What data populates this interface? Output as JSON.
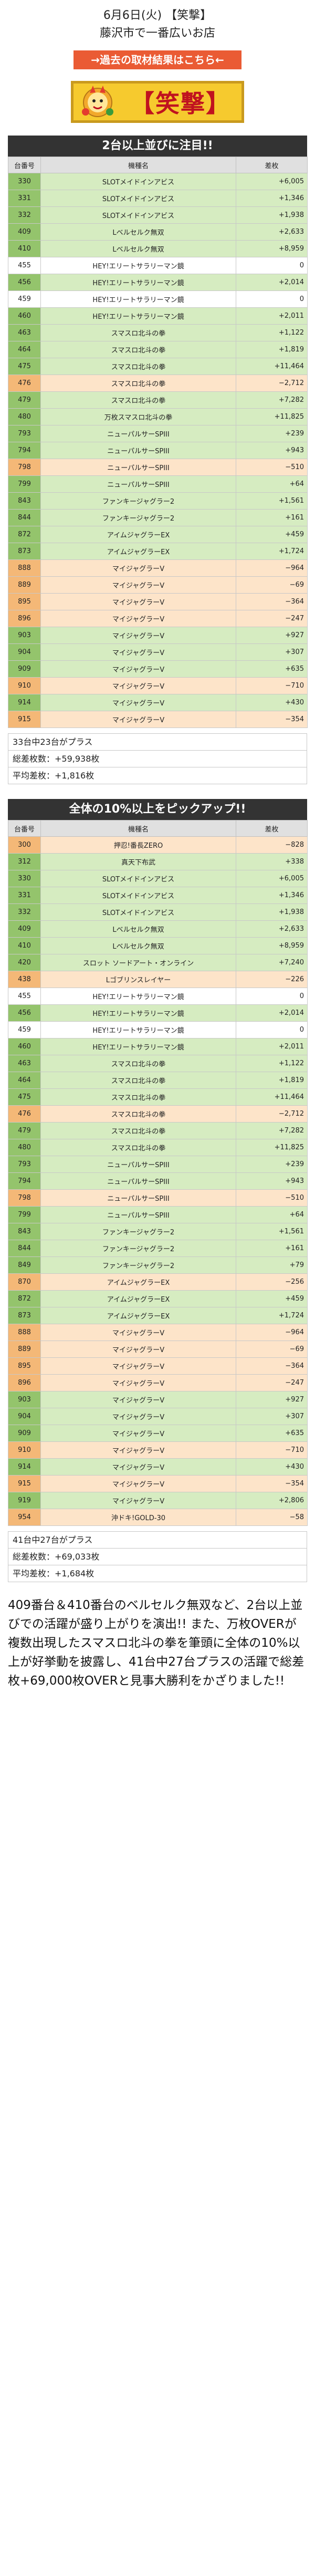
{
  "header": {
    "date_line": "6月6日(火) 【笑撃】",
    "store_line": "藤沢市で一番広いお店",
    "banner_link": "→過去の取材結果はこちら←",
    "logo_text": "【笑撃】"
  },
  "colors": {
    "banner": "#ea5b34",
    "plus": "#94c46c",
    "minus": "#f4b877"
  },
  "table_headers": {
    "no": "台番号",
    "name": "機種名",
    "diff": "差枚"
  },
  "section1": {
    "title": "2台以上並びに注目!!",
    "rows": [
      {
        "no": "330",
        "name": "SLOTメイドインアビス",
        "diff": "+6,005"
      },
      {
        "no": "331",
        "name": "SLOTメイドインアビス",
        "diff": "+1,346"
      },
      {
        "no": "332",
        "name": "SLOTメイドインアビス",
        "diff": "+1,938"
      },
      {
        "no": "409",
        "name": "Lベルセルク無双",
        "diff": "+2,633"
      },
      {
        "no": "410",
        "name": "Lベルセルク無双",
        "diff": "+8,959"
      },
      {
        "no": "455",
        "name": "HEY!エリートサラリーマン鏡",
        "diff": "0"
      },
      {
        "no": "456",
        "name": "HEY!エリートサラリーマン鏡",
        "diff": "+2,014"
      },
      {
        "no": "459",
        "name": "HEY!エリートサラリーマン鏡",
        "diff": "0"
      },
      {
        "no": "460",
        "name": "HEY!エリートサラリーマン鏡",
        "diff": "+2,011"
      },
      {
        "no": "463",
        "name": "スマスロ北斗の拳",
        "diff": "+1,122"
      },
      {
        "no": "464",
        "name": "スマスロ北斗の拳",
        "diff": "+1,819"
      },
      {
        "no": "475",
        "name": "スマスロ北斗の拳",
        "diff": "+11,464"
      },
      {
        "no": "476",
        "name": "スマスロ北斗の拳",
        "diff": "−2,712"
      },
      {
        "no": "479",
        "name": "スマスロ北斗の拳",
        "diff": "+7,282"
      },
      {
        "no": "480",
        "name": "万枚スマスロ北斗の拳",
        "diff": "+11,825"
      },
      {
        "no": "793",
        "name": "ニューパルサーSPIII",
        "diff": "+239"
      },
      {
        "no": "794",
        "name": "ニューパルサーSPIII",
        "diff": "+943"
      },
      {
        "no": "798",
        "name": "ニューパルサーSPIII",
        "diff": "−510"
      },
      {
        "no": "799",
        "name": "ニューパルサーSPIII",
        "diff": "+64"
      },
      {
        "no": "843",
        "name": "ファンキージャグラー2",
        "diff": "+1,561"
      },
      {
        "no": "844",
        "name": "ファンキージャグラー2",
        "diff": "+161"
      },
      {
        "no": "872",
        "name": "アイムジャグラーEX",
        "diff": "+459"
      },
      {
        "no": "873",
        "name": "アイムジャグラーEX",
        "diff": "+1,724"
      },
      {
        "no": "888",
        "name": "マイジャグラーV",
        "diff": "−964"
      },
      {
        "no": "889",
        "name": "マイジャグラーV",
        "diff": "−69"
      },
      {
        "no": "895",
        "name": "マイジャグラーV",
        "diff": "−364"
      },
      {
        "no": "896",
        "name": "マイジャグラーV",
        "diff": "−247"
      },
      {
        "no": "903",
        "name": "マイジャグラーV",
        "diff": "+927"
      },
      {
        "no": "904",
        "name": "マイジャグラーV",
        "diff": "+307"
      },
      {
        "no": "909",
        "name": "マイジャグラーV",
        "diff": "+635"
      },
      {
        "no": "910",
        "name": "マイジャグラーV",
        "diff": "−710"
      },
      {
        "no": "914",
        "name": "マイジャグラーV",
        "diff": "+430"
      },
      {
        "no": "915",
        "name": "マイジャグラーV",
        "diff": "−354"
      }
    ],
    "summary": {
      "count": "33台中23台がプラス",
      "total": "総差枚数：+59,938枚",
      "average": "平均差枚：+1,816枚"
    }
  },
  "section2": {
    "title": "全体の10%以上をピックアップ!!",
    "rows": [
      {
        "no": "300",
        "name": "押忍!番長ZERO",
        "diff": "−828"
      },
      {
        "no": "312",
        "name": "真天下布武",
        "diff": "+338"
      },
      {
        "no": "330",
        "name": "SLOTメイドインアビス",
        "diff": "+6,005"
      },
      {
        "no": "331",
        "name": "SLOTメイドインアビス",
        "diff": "+1,346"
      },
      {
        "no": "332",
        "name": "SLOTメイドインアビス",
        "diff": "+1,938"
      },
      {
        "no": "409",
        "name": "Lベルセルク無双",
        "diff": "+2,633"
      },
      {
        "no": "410",
        "name": "Lベルセルク無双",
        "diff": "+8,959"
      },
      {
        "no": "420",
        "name": "スロット ソードアート・オンライン",
        "diff": "+7,240"
      },
      {
        "no": "438",
        "name": "Lゴブリンスレイヤー",
        "diff": "−226"
      },
      {
        "no": "455",
        "name": "HEY!エリートサラリーマン鏡",
        "diff": "0"
      },
      {
        "no": "456",
        "name": "HEY!エリートサラリーマン鏡",
        "diff": "+2,014"
      },
      {
        "no": "459",
        "name": "HEY!エリートサラリーマン鏡",
        "diff": "0"
      },
      {
        "no": "460",
        "name": "HEY!エリートサラリーマン鏡",
        "diff": "+2,011"
      },
      {
        "no": "463",
        "name": "スマスロ北斗の拳",
        "diff": "+1,122"
      },
      {
        "no": "464",
        "name": "スマスロ北斗の拳",
        "diff": "+1,819"
      },
      {
        "no": "475",
        "name": "スマスロ北斗の拳",
        "diff": "+11,464"
      },
      {
        "no": "476",
        "name": "スマスロ北斗の拳",
        "diff": "−2,712"
      },
      {
        "no": "479",
        "name": "スマスロ北斗の拳",
        "diff": "+7,282"
      },
      {
        "no": "480",
        "name": "スマスロ北斗の拳",
        "diff": "+11,825"
      },
      {
        "no": "793",
        "name": "ニューパルサーSPIII",
        "diff": "+239"
      },
      {
        "no": "794",
        "name": "ニューパルサーSPIII",
        "diff": "+943"
      },
      {
        "no": "798",
        "name": "ニューパルサーSPIII",
        "diff": "−510"
      },
      {
        "no": "799",
        "name": "ニューパルサーSPIII",
        "diff": "+64"
      },
      {
        "no": "843",
        "name": "ファンキージャグラー2",
        "diff": "+1,561"
      },
      {
        "no": "844",
        "name": "ファンキージャグラー2",
        "diff": "+161"
      },
      {
        "no": "849",
        "name": "ファンキージャグラー2",
        "diff": "+79"
      },
      {
        "no": "870",
        "name": "アイムジャグラーEX",
        "diff": "−256"
      },
      {
        "no": "872",
        "name": "アイムジャグラーEX",
        "diff": "+459"
      },
      {
        "no": "873",
        "name": "アイムジャグラーEX",
        "diff": "+1,724"
      },
      {
        "no": "888",
        "name": "マイジャグラーV",
        "diff": "−964"
      },
      {
        "no": "889",
        "name": "マイジャグラーV",
        "diff": "−69"
      },
      {
        "no": "895",
        "name": "マイジャグラーV",
        "diff": "−364"
      },
      {
        "no": "896",
        "name": "マイジャグラーV",
        "diff": "−247"
      },
      {
        "no": "903",
        "name": "マイジャグラーV",
        "diff": "+927"
      },
      {
        "no": "904",
        "name": "マイジャグラーV",
        "diff": "+307"
      },
      {
        "no": "909",
        "name": "マイジャグラーV",
        "diff": "+635"
      },
      {
        "no": "910",
        "name": "マイジャグラーV",
        "diff": "−710"
      },
      {
        "no": "914",
        "name": "マイジャグラーV",
        "diff": "+430"
      },
      {
        "no": "915",
        "name": "マイジャグラーV",
        "diff": "−354"
      },
      {
        "no": "919",
        "name": "マイジャグラーV",
        "diff": "+2,806"
      },
      {
        "no": "954",
        "name": "沖ドキ!GOLD-30",
        "diff": "−58"
      }
    ],
    "summary": {
      "count": "41台中27台がプラス",
      "total": "総差枚数：+69,033枚",
      "average": "平均差枚：+1,684枚"
    }
  },
  "comment": "409番台＆410番台のベルセルク無双など、2台以上並びでの活躍が盛り上がりを演出!! また、万枚OVERが複数出現したスマスロ北斗の拳を筆頭に全体の10%以上が好挙動を披露し、41台中27台プラスの活躍で総差枚+69,000枚OVERと見事大勝利をかざりました!!"
}
